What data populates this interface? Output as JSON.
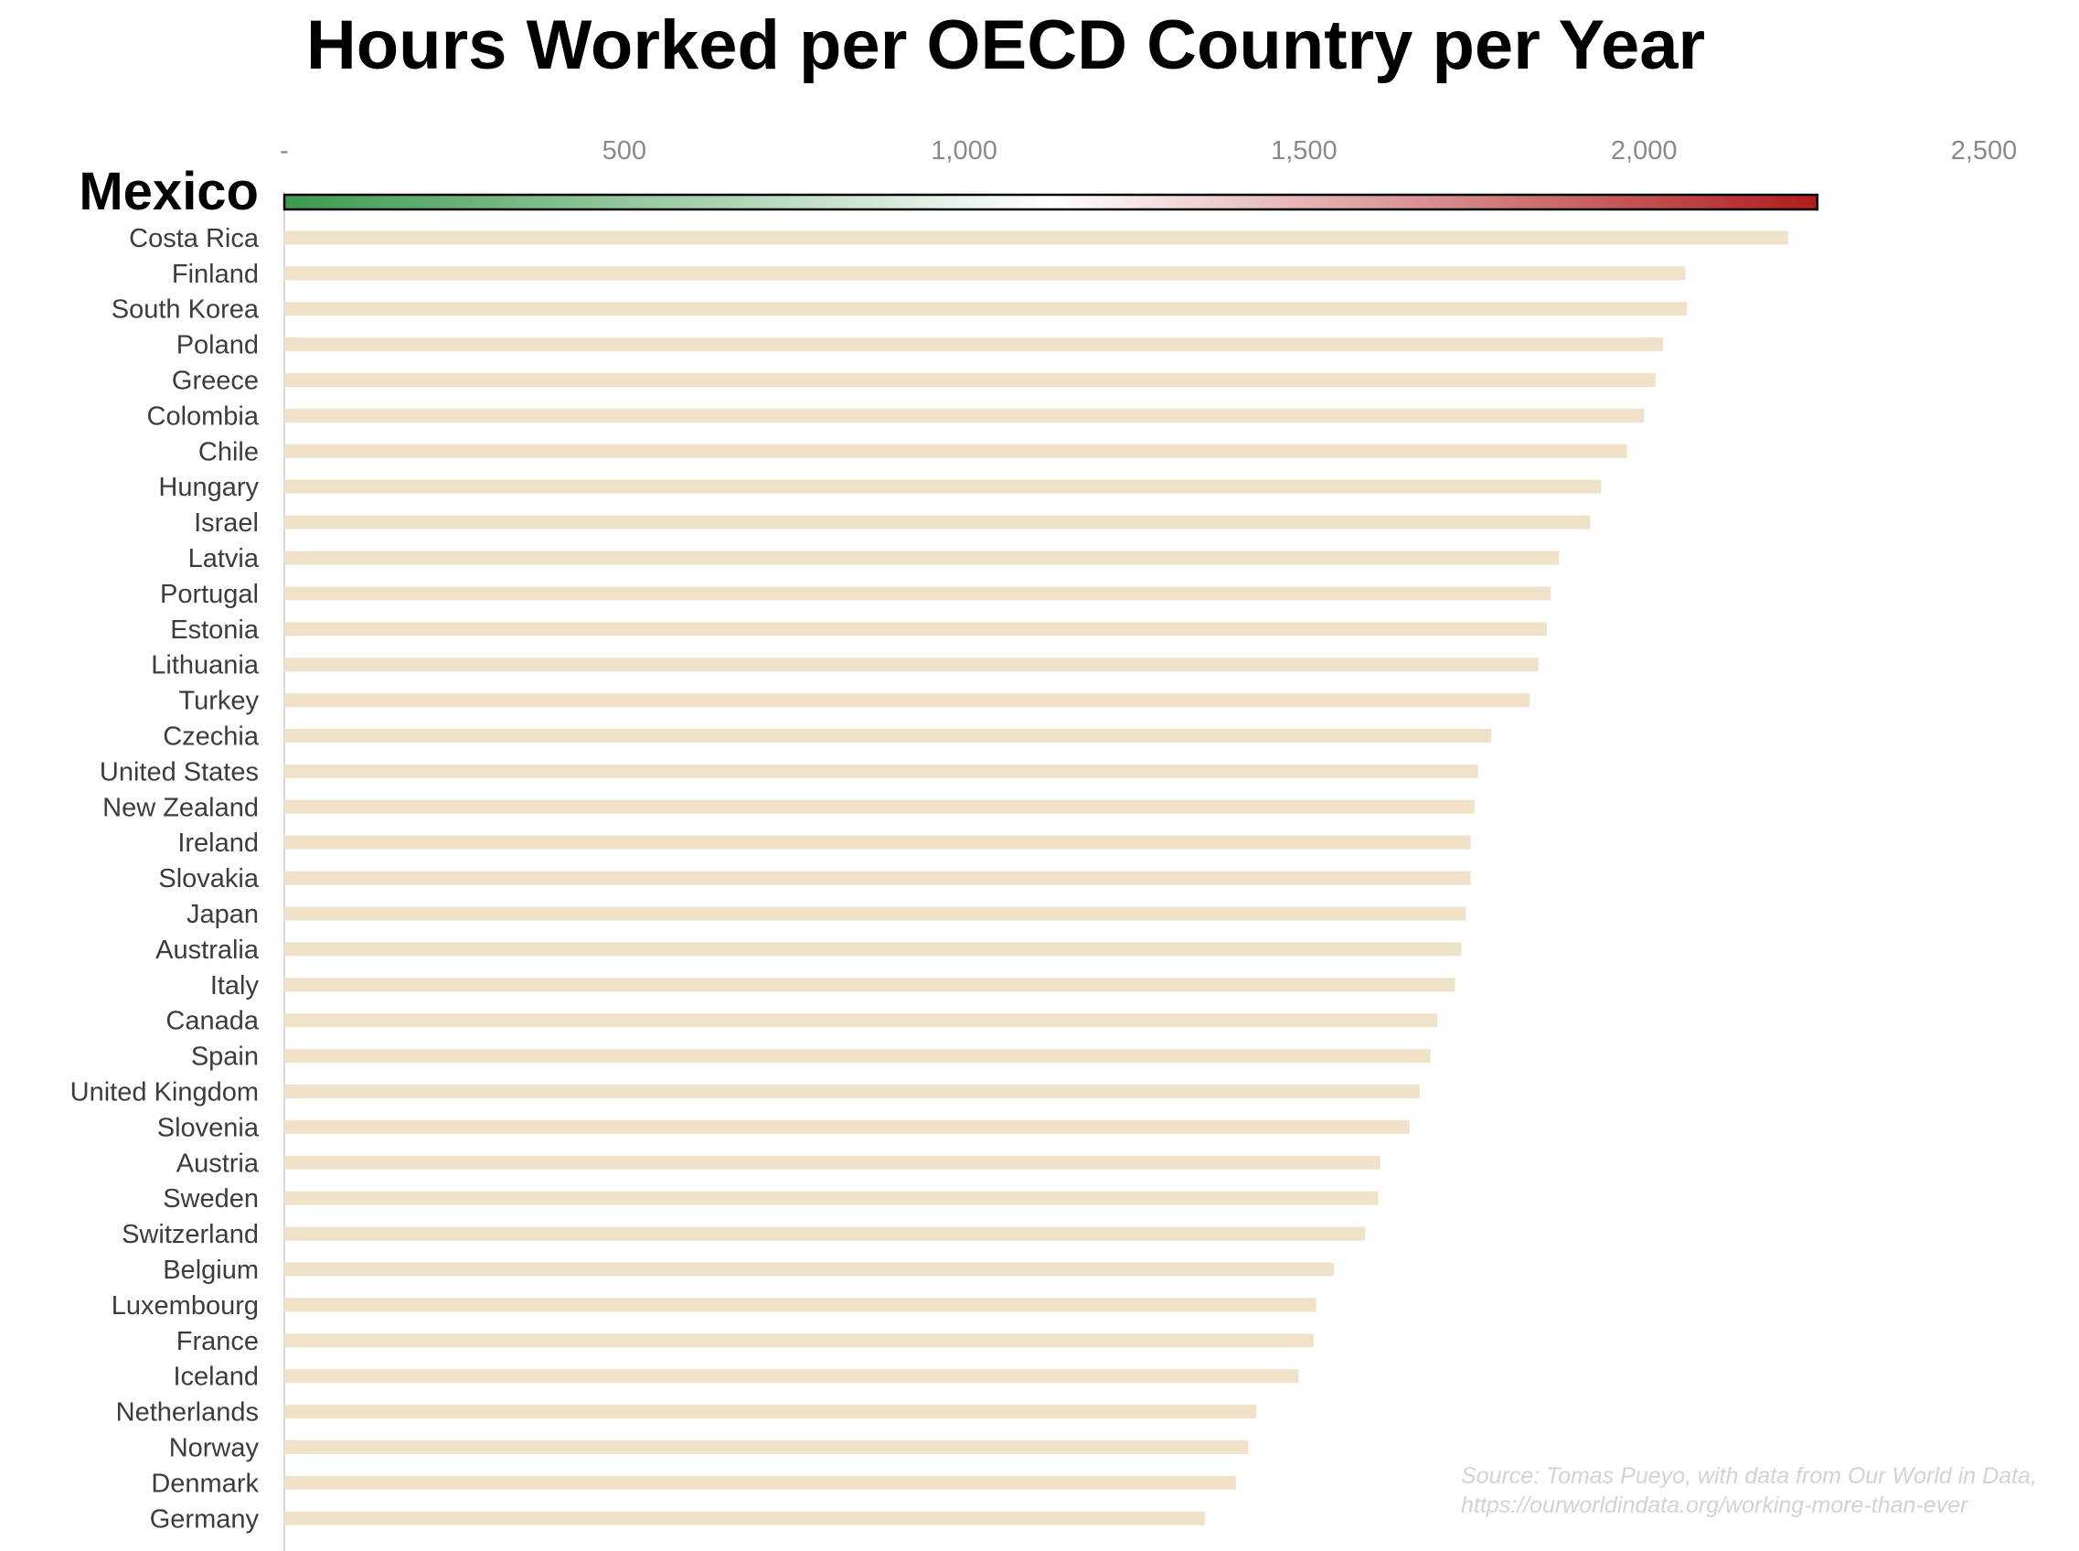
{
  "chart_data": {
    "type": "bar",
    "orientation": "horizontal",
    "title": "Hours Worked per OECD Country per Year",
    "xlim": [
      0,
      2500
    ],
    "x_ticks": [
      0,
      500,
      1000,
      1500,
      2000,
      2500
    ],
    "x_tick_labels": [
      "-",
      "500",
      "1,000",
      "1,500",
      "2,000",
      "2,500"
    ],
    "axis_position": "top",
    "grid": false,
    "bar_color": "#f0e2c8",
    "highlight": {
      "category": "Mexico",
      "gradient_colors": [
        "#3c9a4e",
        "#ffffff",
        "#b01c1c"
      ]
    },
    "categories": [
      "Mexico",
      "Costa Rica",
      "Finland",
      "South Korea",
      "Poland",
      "Greece",
      "Colombia",
      "Chile",
      "Hungary",
      "Israel",
      "Latvia",
      "Portugal",
      "Estonia",
      "Lithuania",
      "Turkey",
      "Czechia",
      "United States",
      "New Zealand",
      "Ireland",
      "Slovakia",
      "Japan",
      "Australia",
      "Italy",
      "Canada",
      "Spain",
      "United Kingdom",
      "Slovenia",
      "Austria",
      "Sweden",
      "Switzerland",
      "Belgium",
      "Luxembourg",
      "France",
      "Iceland",
      "Netherlands",
      "Norway",
      "Denmark",
      "Germany"
    ],
    "values": [
      2255,
      2212,
      2061,
      2063,
      2028,
      2017,
      2000,
      1975,
      1937,
      1921,
      1875,
      1863,
      1857,
      1845,
      1832,
      1775,
      1756,
      1751,
      1745,
      1745,
      1738,
      1731,
      1722,
      1696,
      1686,
      1670,
      1655,
      1612,
      1609,
      1590,
      1544,
      1518,
      1514,
      1492,
      1430,
      1418,
      1400,
      1354
    ]
  },
  "source_lines": [
    "Source: Tomas Pueyo, with data from Our World in Data,",
    "https://ourworldindata.org/working-more-than-ever"
  ]
}
